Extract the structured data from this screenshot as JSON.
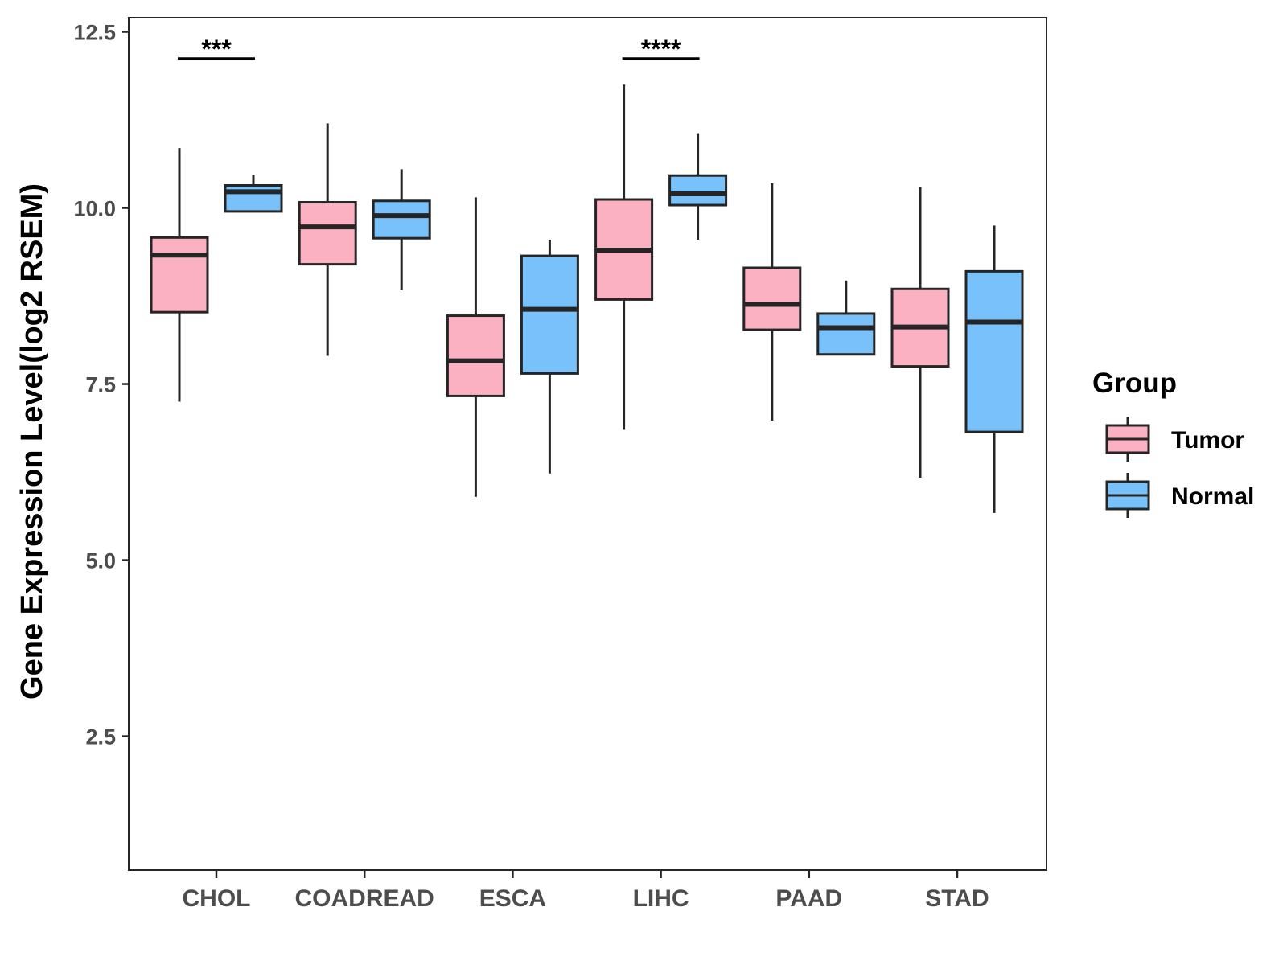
{
  "chart_data": {
    "type": "boxplot",
    "title": "",
    "xlabel": "",
    "ylabel": "Gene Expression Level(log2 RSEM)",
    "ylim": [
      0.6,
      12.7
    ],
    "yticks": [
      2.5,
      5.0,
      7.5,
      10.0,
      12.5
    ],
    "ytick_labels": [
      "2.5",
      "5.0",
      "7.5",
      "10.0",
      "12.5"
    ],
    "grid": false,
    "legend": {
      "title": "Group",
      "position": "right",
      "entries": [
        {
          "name": "Tumor",
          "color": "#fcb1c2"
        },
        {
          "name": "Normal",
          "color": "#79c1fa"
        }
      ]
    },
    "categories": [
      "CHOL",
      "COADREAD",
      "ESCA",
      "LIHC",
      "PAAD",
      "STAD"
    ],
    "series": [
      {
        "name": "Tumor",
        "color": "#fcb1c2",
        "boxes": [
          {
            "min": 7.25,
            "q1": 8.52,
            "median": 9.33,
            "q3": 9.58,
            "max": 10.85
          },
          {
            "min": 7.9,
            "q1": 9.2,
            "median": 9.73,
            "q3": 10.08,
            "max": 11.2
          },
          {
            "min": 5.9,
            "q1": 7.33,
            "median": 7.83,
            "q3": 8.47,
            "max": 10.15
          },
          {
            "min": 6.85,
            "q1": 8.7,
            "median": 9.4,
            "q3": 10.12,
            "max": 11.75
          },
          {
            "min": 6.98,
            "q1": 8.27,
            "median": 8.63,
            "q3": 9.15,
            "max": 10.35
          },
          {
            "min": 6.17,
            "q1": 7.75,
            "median": 8.31,
            "q3": 8.85,
            "max": 10.3
          }
        ]
      },
      {
        "name": "Normal",
        "color": "#79c1fa",
        "boxes": [
          {
            "min": 9.95,
            "q1": 9.95,
            "median": 10.23,
            "q3": 10.32,
            "max": 10.47
          },
          {
            "min": 8.83,
            "q1": 9.57,
            "median": 9.89,
            "q3": 10.1,
            "max": 10.55
          },
          {
            "min": 6.23,
            "q1": 7.65,
            "median": 8.56,
            "q3": 9.32,
            "max": 9.55
          },
          {
            "min": 9.55,
            "q1": 10.04,
            "median": 10.2,
            "q3": 10.46,
            "max": 11.05
          },
          {
            "min": 7.92,
            "q1": 7.92,
            "median": 8.3,
            "q3": 8.5,
            "max": 8.97
          },
          {
            "min": 5.67,
            "q1": 6.82,
            "median": 8.38,
            "q3": 9.1,
            "max": 9.75
          }
        ]
      }
    ],
    "significance": [
      {
        "category": "CHOL",
        "label": "***",
        "y": 12.12
      },
      {
        "category": "LIHC",
        "label": "****",
        "y": 12.12
      }
    ]
  }
}
